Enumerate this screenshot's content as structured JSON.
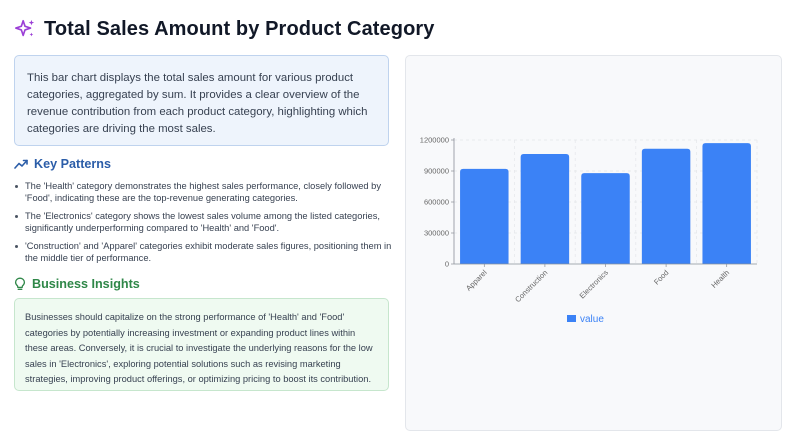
{
  "header": {
    "title": "Total Sales Amount by Product Category",
    "icon": "sparkles-icon"
  },
  "summary": {
    "text": "This bar chart displays the total sales amount for various product categories, aggregated by sum. It provides a clear overview of the revenue contribution from each product category, highlighting which categories are driving the most sales."
  },
  "patterns": {
    "title": "Key Patterns",
    "icon": "trending-up-icon",
    "items": [
      "The 'Health' category demonstrates the highest sales performance, closely followed by 'Food', indicating these are the top-revenue generating categories.",
      "The 'Electronics' category shows the lowest sales volume among the listed categories, significantly underperforming compared to 'Health' and 'Food'.",
      "'Construction' and 'Apparel' categories exhibit moderate sales figures, positioning them in the middle tier of performance."
    ]
  },
  "insights": {
    "title": "Business Insights",
    "icon": "lightbulb-icon",
    "text": "Businesses should capitalize on the strong performance of 'Health' and 'Food' categories by potentially increasing investment or expanding product lines within these areas. Conversely, it is crucial to investigate the underlying reasons for the low sales in 'Electronics', exploring potential solutions such as revising marketing strategies, improving product offerings, or optimizing pricing to boost its contribution."
  },
  "colors": {
    "bar": "#3b82f6",
    "patterns_accent": "#2b5da8",
    "insights_accent": "#2f8748"
  },
  "chart_data": {
    "type": "bar",
    "categories": [
      "Apparel",
      "Construction",
      "Electronics",
      "Food",
      "Health"
    ],
    "series": [
      {
        "name": "value",
        "values": [
          920000,
          1065000,
          880000,
          1115000,
          1170000
        ]
      }
    ],
    "yticks": [
      "0",
      "300000",
      "600000",
      "900000",
      "1200000"
    ],
    "ylim": [
      0,
      1200000
    ],
    "title": "",
    "xlabel": "",
    "ylabel": "",
    "grid": true,
    "legend": "bottom-center"
  }
}
